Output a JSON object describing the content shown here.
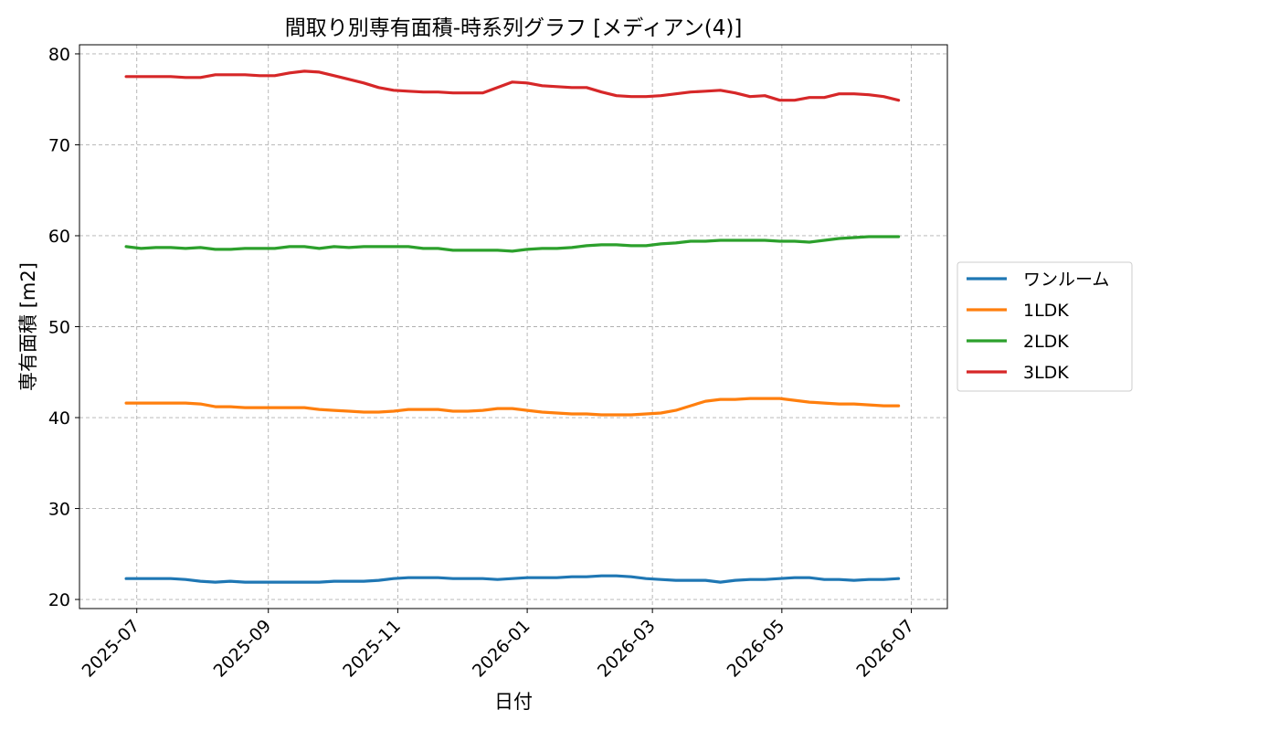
{
  "chart_data": {
    "type": "line",
    "title": "間取り別専有面積-時系列グラフ [メディアン(4)]",
    "xlabel": "日付",
    "ylabel": "専有面積 [m2]",
    "xlim": [
      "2025-06-04",
      "2026-07-18"
    ],
    "ylim": [
      19,
      81
    ],
    "x_ticks": [
      "2025-07",
      "2025-09",
      "2025-11",
      "2026-01",
      "2026-03",
      "2026-05",
      "2026-07"
    ],
    "y_ticks": [
      20,
      30,
      40,
      50,
      60,
      70,
      80
    ],
    "grid": true,
    "legend_position": "center-right outside",
    "x": [
      "2025-06-26",
      "2025-07-03",
      "2025-07-10",
      "2025-07-17",
      "2025-07-24",
      "2025-07-31",
      "2025-08-07",
      "2025-08-14",
      "2025-08-21",
      "2025-08-28",
      "2025-09-04",
      "2025-09-11",
      "2025-09-18",
      "2025-09-25",
      "2025-10-02",
      "2025-10-09",
      "2025-10-16",
      "2025-10-23",
      "2025-10-30",
      "2025-11-06",
      "2025-11-13",
      "2025-11-20",
      "2025-11-27",
      "2025-12-04",
      "2025-12-11",
      "2025-12-18",
      "2025-12-25",
      "2026-01-01",
      "2026-01-08",
      "2026-01-15",
      "2026-01-22",
      "2026-01-29",
      "2026-02-05",
      "2026-02-12",
      "2026-02-19",
      "2026-02-26",
      "2026-03-05",
      "2026-03-12",
      "2026-03-19",
      "2026-03-26",
      "2026-04-02",
      "2026-04-09",
      "2026-04-16",
      "2026-04-23",
      "2026-04-30",
      "2026-05-07",
      "2026-05-14",
      "2026-05-21",
      "2026-05-28",
      "2026-06-04",
      "2026-06-11",
      "2026-06-18",
      "2026-06-25"
    ],
    "series": [
      {
        "name": "ワンルーム",
        "color": "#1f77b4",
        "values": [
          22.3,
          22.3,
          22.3,
          22.3,
          22.2,
          22.0,
          21.9,
          22.0,
          21.9,
          21.9,
          21.9,
          21.9,
          21.9,
          21.9,
          22.0,
          22.0,
          22.0,
          22.1,
          22.3,
          22.4,
          22.4,
          22.4,
          22.3,
          22.3,
          22.3,
          22.2,
          22.3,
          22.4,
          22.4,
          22.4,
          22.5,
          22.5,
          22.6,
          22.6,
          22.5,
          22.3,
          22.2,
          22.1,
          22.1,
          22.1,
          21.9,
          22.1,
          22.2,
          22.2,
          22.3,
          22.4,
          22.4,
          22.2,
          22.2,
          22.1,
          22.2,
          22.2,
          22.3
        ]
      },
      {
        "name": "1LDK",
        "color": "#ff7f0e",
        "values": [
          41.6,
          41.6,
          41.6,
          41.6,
          41.6,
          41.5,
          41.2,
          41.2,
          41.1,
          41.1,
          41.1,
          41.1,
          41.1,
          40.9,
          40.8,
          40.7,
          40.6,
          40.6,
          40.7,
          40.9,
          40.9,
          40.9,
          40.7,
          40.7,
          40.8,
          41.0,
          41.0,
          40.8,
          40.6,
          40.5,
          40.4,
          40.4,
          40.3,
          40.3,
          40.3,
          40.4,
          40.5,
          40.8,
          41.3,
          41.8,
          42.0,
          42.0,
          42.1,
          42.1,
          42.1,
          41.9,
          41.7,
          41.6,
          41.5,
          41.5,
          41.4,
          41.3,
          41.3
        ]
      },
      {
        "name": "2LDK",
        "color": "#2ca02c",
        "values": [
          58.8,
          58.6,
          58.7,
          58.7,
          58.6,
          58.7,
          58.5,
          58.5,
          58.6,
          58.6,
          58.6,
          58.8,
          58.8,
          58.6,
          58.8,
          58.7,
          58.8,
          58.8,
          58.8,
          58.8,
          58.6,
          58.6,
          58.4,
          58.4,
          58.4,
          58.4,
          58.3,
          58.5,
          58.6,
          58.6,
          58.7,
          58.9,
          59.0,
          59.0,
          58.9,
          58.9,
          59.1,
          59.2,
          59.4,
          59.4,
          59.5,
          59.5,
          59.5,
          59.5,
          59.4,
          59.4,
          59.3,
          59.5,
          59.7,
          59.8,
          59.9,
          59.9,
          59.9
        ]
      },
      {
        "name": "3LDK",
        "color": "#d62728",
        "values": [
          77.5,
          77.5,
          77.5,
          77.5,
          77.4,
          77.4,
          77.7,
          77.7,
          77.7,
          77.6,
          77.6,
          77.9,
          78.1,
          78.0,
          77.6,
          77.2,
          76.8,
          76.3,
          76.0,
          75.9,
          75.8,
          75.8,
          75.7,
          75.7,
          75.7,
          76.3,
          76.9,
          76.8,
          76.5,
          76.4,
          76.3,
          76.3,
          75.8,
          75.4,
          75.3,
          75.3,
          75.4,
          75.6,
          75.8,
          75.9,
          76.0,
          75.7,
          75.3,
          75.4,
          74.9,
          74.9,
          75.2,
          75.2,
          75.6,
          75.6,
          75.5,
          75.3,
          74.9
        ]
      }
    ]
  }
}
